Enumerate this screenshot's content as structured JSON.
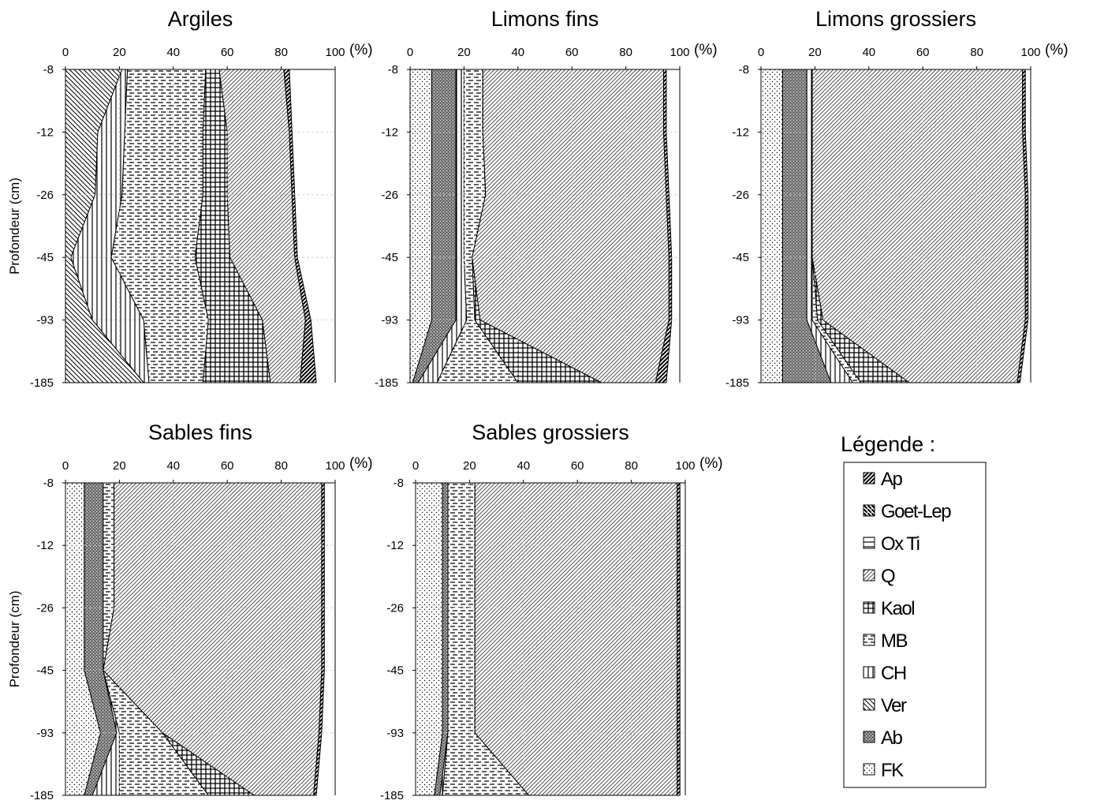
{
  "legend": {
    "title": "Légende :",
    "items": [
      {
        "key": "Ap",
        "label": "Ap",
        "pattern": "ap"
      },
      {
        "key": "GoetLep",
        "label": "Goet-Lep",
        "pattern": "goet"
      },
      {
        "key": "OxTi",
        "label": "Ox Ti",
        "pattern": "oxti"
      },
      {
        "key": "Q",
        "label": "Q",
        "pattern": "q"
      },
      {
        "key": "Kaol",
        "label": "Kaol",
        "pattern": "kaol"
      },
      {
        "key": "MB",
        "label": "MB",
        "pattern": "mb"
      },
      {
        "key": "CH",
        "label": "CH",
        "pattern": "ch"
      },
      {
        "key": "Ver",
        "label": "Ver",
        "pattern": "ver"
      },
      {
        "key": "Ab",
        "label": "Ab",
        "pattern": "ab"
      },
      {
        "key": "FK",
        "label": "FK",
        "pattern": "fk"
      }
    ]
  },
  "chart_data": [
    {
      "type": "area",
      "title": "Argiles",
      "unit": "(%)",
      "ylabel": "Profondeur (cm)",
      "xlim": [
        0,
        100
      ],
      "xticks": [
        "0",
        "20",
        "40",
        "60",
        "80",
        "100"
      ],
      "depths": [
        "-8",
        "-12",
        "-26",
        "-45",
        "-93",
        "-185"
      ],
      "stack_order": [
        "FK",
        "Ab",
        "Ver",
        "CH",
        "MB",
        "Kaol",
        "OxTi",
        "Q",
        "GoetLep",
        "Ap"
      ],
      "series": [
        {
          "name": "Ver",
          "values": [
            21,
            12,
            11,
            2,
            10,
            29
          ]
        },
        {
          "name": "CH",
          "values": [
            2,
            10,
            10,
            15,
            19,
            2
          ]
        },
        {
          "name": "MB",
          "values": [
            29,
            29,
            30,
            31,
            24,
            20
          ]
        },
        {
          "name": "Kaol",
          "values": [
            5,
            9,
            9,
            13,
            20,
            25
          ]
        },
        {
          "name": "Q",
          "values": [
            24,
            23,
            24,
            24,
            16,
            11
          ]
        },
        {
          "name": "GoetLep",
          "values": [
            0,
            0,
            0,
            0,
            0,
            0
          ]
        },
        {
          "name": "Ap",
          "values": [
            2,
            1,
            1,
            1,
            2,
            6
          ]
        }
      ]
    },
    {
      "type": "area",
      "title": "Limons fins",
      "unit": "(%)",
      "ylabel": "",
      "xlim": [
        0,
        100
      ],
      "xticks": [
        "0",
        "20",
        "40",
        "60",
        "80",
        "100"
      ],
      "depths": [
        "-8",
        "-12",
        "-26",
        "-45",
        "-93",
        "-185"
      ],
      "stack_order": [
        "FK",
        "Ab",
        "Ver",
        "CH",
        "MB",
        "Kaol",
        "OxTi",
        "Q",
        "GoetLep",
        "Ap"
      ],
      "series": [
        {
          "name": "FK",
          "values": [
            8,
            8,
            8,
            8,
            8,
            1
          ]
        },
        {
          "name": "Ab",
          "values": [
            9,
            9,
            9,
            9,
            9,
            2
          ]
        },
        {
          "name": "CH",
          "values": [
            3,
            3,
            3,
            3,
            4,
            7
          ]
        },
        {
          "name": "MB",
          "values": [
            7,
            7,
            8,
            3,
            3,
            30
          ]
        },
        {
          "name": "Kaol",
          "values": [
            0,
            0,
            0,
            0,
            2,
            31
          ]
        },
        {
          "name": "Q",
          "values": [
            67,
            67,
            67,
            73,
            70,
            20
          ]
        },
        {
          "name": "Ap",
          "values": [
            1,
            1,
            1,
            1,
            1,
            4
          ]
        }
      ]
    },
    {
      "type": "area",
      "title": "Limons grossiers",
      "unit": "(%)",
      "ylabel": "",
      "xlim": [
        0,
        100
      ],
      "xticks": [
        "0",
        "20",
        "40",
        "60",
        "80",
        "100"
      ],
      "depths": [
        "-8",
        "-12",
        "-26",
        "-45",
        "-93",
        "-185"
      ],
      "stack_order": [
        "FK",
        "Ab",
        "Ver",
        "CH",
        "MB",
        "Kaol",
        "OxTi",
        "Q",
        "GoetLep",
        "Ap"
      ],
      "series": [
        {
          "name": "FK",
          "values": [
            8,
            8,
            8,
            8,
            8,
            8
          ]
        },
        {
          "name": "Ab",
          "values": [
            9,
            9,
            9,
            9,
            9,
            18
          ]
        },
        {
          "name": "CH",
          "values": [
            2,
            2,
            2,
            2,
            2,
            8
          ]
        },
        {
          "name": "MB",
          "values": [
            0,
            0,
            0,
            0,
            2,
            3
          ]
        },
        {
          "name": "Kaol",
          "values": [
            0,
            0,
            0,
            0,
            2,
            18
          ]
        },
        {
          "name": "Q",
          "values": [
            78,
            78,
            79,
            79,
            75,
            40
          ]
        },
        {
          "name": "Ap",
          "values": [
            1,
            1,
            1,
            1,
            1,
            1
          ]
        }
      ]
    },
    {
      "type": "area",
      "title": "Sables fins",
      "unit": "(%)",
      "ylabel": "Profondeur (cm)",
      "xlim": [
        0,
        100
      ],
      "xticks": [
        "0",
        "20",
        "40",
        "60",
        "80",
        "100"
      ],
      "depths": [
        "-8",
        "-12",
        "-26",
        "-45",
        "-93",
        "-185"
      ],
      "stack_order": [
        "FK",
        "Ab",
        "Ver",
        "CH",
        "MB",
        "Kaol",
        "OxTi",
        "Q",
        "GoetLep",
        "Ap"
      ],
      "series": [
        {
          "name": "FK",
          "values": [
            7,
            7,
            7,
            7,
            13,
            7
          ]
        },
        {
          "name": "Ab",
          "values": [
            7,
            7,
            7,
            7,
            6,
            3
          ]
        },
        {
          "name": "CH",
          "values": [
            0,
            0,
            0,
            0,
            1,
            10
          ]
        },
        {
          "name": "MB",
          "values": [
            4,
            4,
            4,
            0,
            16,
            33
          ]
        },
        {
          "name": "Kaol",
          "values": [
            0,
            0,
            0,
            0,
            0,
            17
          ]
        },
        {
          "name": "Q",
          "values": [
            77,
            77,
            77,
            81,
            58,
            22
          ]
        },
        {
          "name": "Ap",
          "values": [
            1,
            1,
            1,
            1,
            1,
            1
          ]
        }
      ]
    },
    {
      "type": "area",
      "title": "Sables grossiers",
      "unit": "(%)",
      "ylabel": "",
      "xlim": [
        0,
        100
      ],
      "xticks": [
        "0",
        "20",
        "40",
        "60",
        "80",
        "100"
      ],
      "depths": [
        "-8",
        "-12",
        "-26",
        "-45",
        "-93",
        "-185"
      ],
      "stack_order": [
        "FK",
        "Ab",
        "Ver",
        "CH",
        "MB",
        "Kaol",
        "OxTi",
        "Q",
        "GoetLep",
        "Ap"
      ],
      "series": [
        {
          "name": "FK",
          "values": [
            10,
            10,
            10,
            10,
            10,
            7
          ]
        },
        {
          "name": "Ab",
          "values": [
            2,
            2,
            2,
            2,
            2,
            2
          ]
        },
        {
          "name": "CH",
          "values": [
            0,
            0,
            0,
            0,
            0,
            1
          ]
        },
        {
          "name": "MB",
          "values": [
            10,
            10,
            10,
            10,
            10,
            32
          ]
        },
        {
          "name": "Q",
          "values": [
            75,
            75,
            75,
            75,
            75,
            55
          ]
        },
        {
          "name": "Ap",
          "values": [
            1,
            1,
            1,
            1,
            1,
            1
          ]
        }
      ]
    }
  ]
}
